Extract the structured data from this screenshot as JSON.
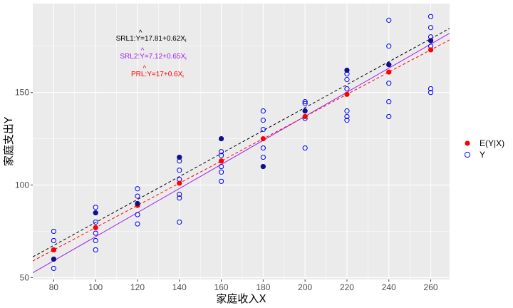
{
  "chart_data": {
    "type": "scatter",
    "xlabel": "家庭收入X",
    "ylabel": "家庭支出Y",
    "xlim": [
      70,
      269
    ],
    "ylim": [
      49,
      198
    ],
    "xticks": [
      80,
      100,
      120,
      140,
      160,
      180,
      200,
      220,
      240,
      260
    ],
    "yticks": [
      50,
      100,
      150
    ],
    "grid": true,
    "legend_position": "right",
    "colors": {
      "panel": "#ebebeb",
      "grid": "#ffffff",
      "ey": "#ff0000",
      "y": "#0000ff",
      "srl1": "#000000",
      "srl2": "#a020f0",
      "prl": "#ff0000"
    },
    "legend": [
      {
        "label": "E(Y|X)",
        "marker": "filled-circle",
        "color": "#ff0000"
      },
      {
        "label": "Y",
        "marker": "open-circle",
        "color": "#0000ff"
      }
    ],
    "series": [
      {
        "name": "Y",
        "marker": "open-circle",
        "points": [
          [
            80,
            55
          ],
          [
            80,
            60
          ],
          [
            80,
            65
          ],
          [
            80,
            70
          ],
          [
            80,
            75
          ],
          [
            100,
            65
          ],
          [
            100,
            70
          ],
          [
            100,
            74
          ],
          [
            100,
            80
          ],
          [
            100,
            85
          ],
          [
            100,
            88
          ],
          [
            120,
            79
          ],
          [
            120,
            84
          ],
          [
            120,
            90
          ],
          [
            120,
            94
          ],
          [
            120,
            98
          ],
          [
            140,
            80
          ],
          [
            140,
            93
          ],
          [
            140,
            95
          ],
          [
            140,
            103
          ],
          [
            140,
            108
          ],
          [
            140,
            113
          ],
          [
            140,
            115
          ],
          [
            160,
            102
          ],
          [
            160,
            107
          ],
          [
            160,
            110
          ],
          [
            160,
            116
          ],
          [
            160,
            118
          ],
          [
            160,
            125
          ],
          [
            180,
            110
          ],
          [
            180,
            115
          ],
          [
            180,
            120
          ],
          [
            180,
            130
          ],
          [
            180,
            135
          ],
          [
            180,
            140
          ],
          [
            200,
            120
          ],
          [
            200,
            136
          ],
          [
            200,
            140
          ],
          [
            200,
            144
          ],
          [
            200,
            145
          ],
          [
            220,
            135
          ],
          [
            220,
            137
          ],
          [
            220,
            140
          ],
          [
            220,
            152
          ],
          [
            220,
            157
          ],
          [
            220,
            160
          ],
          [
            220,
            162
          ],
          [
            240,
            137
          ],
          [
            240,
            145
          ],
          [
            240,
            155
          ],
          [
            240,
            165
          ],
          [
            240,
            175
          ],
          [
            240,
            189
          ],
          [
            260,
            150
          ],
          [
            260,
            152
          ],
          [
            260,
            175
          ],
          [
            260,
            178
          ],
          [
            260,
            180
          ],
          [
            260,
            185
          ],
          [
            260,
            191
          ]
        ]
      },
      {
        "name": "E(Y|X)",
        "marker": "filled-circle",
        "points": [
          [
            80,
            65
          ],
          [
            100,
            77
          ],
          [
            120,
            89
          ],
          [
            140,
            101
          ],
          [
            160,
            113
          ],
          [
            180,
            125
          ],
          [
            200,
            137
          ],
          [
            220,
            149
          ],
          [
            240,
            161
          ],
          [
            260,
            173
          ]
        ]
      },
      {
        "name": "Y-sample-1",
        "marker": "filled-dark",
        "points": [
          [
            80,
            60
          ],
          [
            100,
            85
          ],
          [
            120,
            90
          ],
          [
            140,
            115
          ],
          [
            160,
            125
          ],
          [
            180,
            110
          ],
          [
            200,
            140
          ],
          [
            220,
            162
          ],
          [
            240,
            165
          ],
          [
            260,
            178
          ]
        ]
      }
    ],
    "lines": [
      {
        "name": "SRL1",
        "intercept": 17.81,
        "slope": 0.62,
        "color": "#000000",
        "dash": "dashed"
      },
      {
        "name": "SRL2",
        "intercept": 7.12,
        "slope": 0.65,
        "color": "#a020f0",
        "dash": "solid"
      },
      {
        "name": "PRL",
        "intercept": 17,
        "slope": 0.6,
        "color": "#ff0000",
        "dash": "dashed"
      }
    ],
    "annotations": [
      {
        "label": "SRL1:",
        "intercept": "17.81",
        "slope": "0.62",
        "color": "#000000"
      },
      {
        "label": "SRL2:",
        "intercept": "7.12",
        "slope": "0.65",
        "color": "#a020f0"
      },
      {
        "label": "PRL:",
        "intercept": "17",
        "slope": "0.6",
        "color": "#ff0000"
      }
    ]
  }
}
